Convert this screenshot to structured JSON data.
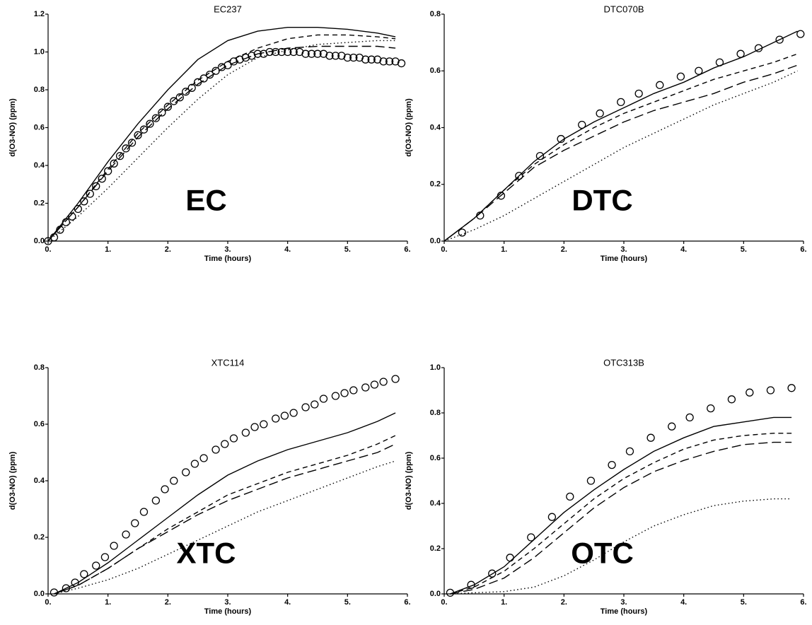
{
  "chart_data": [
    {
      "type": "line",
      "title": "EC237",
      "annotation": "EC",
      "x_label": "Time (hours)",
      "y_label": "d(O3-NO) (ppm)",
      "xlim": [
        0,
        6
      ],
      "ylim": [
        0,
        1.2
      ],
      "xticks": [
        {
          "value": 0,
          "label": "0."
        },
        {
          "value": 1,
          "label": "1."
        },
        {
          "value": 2,
          "label": "2."
        },
        {
          "value": 3,
          "label": "3."
        },
        {
          "value": 4,
          "label": "4."
        },
        {
          "value": 5,
          "label": "5."
        },
        {
          "value": 6,
          "label": "6."
        }
      ],
      "yticks": [
        {
          "value": 0,
          "label": "0.0"
        },
        0.2,
        0.4,
        0.6,
        0.8,
        {
          "value": 1,
          "label": "1.0"
        },
        1.2
      ],
      "series": [
        {
          "marker": "circle",
          "color": "#000000",
          "x": [
            0,
            0.1,
            0.2,
            0.3,
            0.4,
            0.5,
            0.6,
            0.7,
            0.8,
            0.9,
            1,
            1.1,
            1.2,
            1.3,
            1.4,
            1.5,
            1.6,
            1.7,
            1.8,
            1.9,
            2,
            2.1,
            2.2,
            2.3,
            2.4,
            2.5,
            2.6,
            2.7,
            2.8,
            2.9,
            3,
            3.1,
            3.2,
            3.3,
            3.4,
            3.5,
            3.6,
            3.7,
            3.8,
            3.9,
            4,
            4.1,
            4.2,
            4.3,
            4.4,
            4.5,
            4.6,
            4.7,
            4.8,
            4.9,
            5,
            5.1,
            5.2,
            5.3,
            5.4,
            5.5,
            5.6,
            5.7,
            5.8,
            5.9
          ],
          "values": [
            0,
            0.02,
            0.06,
            0.1,
            0.13,
            0.17,
            0.21,
            0.25,
            0.29,
            0.33,
            0.37,
            0.41,
            0.45,
            0.49,
            0.52,
            0.56,
            0.59,
            0.62,
            0.65,
            0.68,
            0.71,
            0.74,
            0.76,
            0.79,
            0.81,
            0.84,
            0.86,
            0.88,
            0.9,
            0.92,
            0.93,
            0.95,
            0.96,
            0.97,
            0.98,
            0.99,
            0.99,
            1,
            1,
            1,
            1,
            1,
            1,
            0.99,
            0.99,
            0.99,
            0.99,
            0.98,
            0.98,
            0.98,
            0.97,
            0.97,
            0.97,
            0.96,
            0.96,
            0.96,
            0.95,
            0.95,
            0.95,
            0.94
          ]
        },
        {
          "line": "solid",
          "color": "#000000",
          "x": [
            0,
            0.5,
            1,
            1.5,
            2,
            2.5,
            3,
            3.5,
            4,
            4.5,
            5,
            5.5,
            5.8
          ],
          "values": [
            0,
            0.2,
            0.42,
            0.62,
            0.8,
            0.96,
            1.06,
            1.11,
            1.13,
            1.13,
            1.12,
            1.1,
            1.08
          ]
        },
        {
          "line": "dashed",
          "color": "#000000",
          "x": [
            0,
            0.5,
            1,
            1.5,
            2,
            2.5,
            3,
            3.5,
            4,
            4.5,
            5,
            5.5,
            5.8
          ],
          "values": [
            0,
            0.18,
            0.38,
            0.57,
            0.72,
            0.85,
            0.95,
            1.02,
            1.07,
            1.09,
            1.09,
            1.08,
            1.07
          ]
        },
        {
          "line": "longdash",
          "color": "#000000",
          "x": [
            0,
            0.5,
            1,
            1.5,
            2,
            2.5,
            3,
            3.5,
            4,
            4.5,
            5,
            5.5,
            5.8
          ],
          "values": [
            0,
            0.18,
            0.37,
            0.55,
            0.7,
            0.83,
            0.93,
            0.99,
            1.02,
            1.03,
            1.03,
            1.03,
            1.02
          ]
        },
        {
          "line": "dotted",
          "color": "#000000",
          "x": [
            0,
            0.5,
            1,
            1.5,
            2,
            2.5,
            3,
            3.5,
            4,
            4.5,
            5,
            5.5,
            5.8
          ],
          "values": [
            0,
            0.13,
            0.28,
            0.44,
            0.6,
            0.75,
            0.88,
            0.97,
            1.01,
            1.04,
            1.05,
            1.06,
            1.06
          ]
        }
      ]
    },
    {
      "type": "line",
      "title": "DTC070B",
      "annotation": "DTC",
      "x_label": "Time (hours)",
      "y_label": "d(O3-NO) (ppm)",
      "xlim": [
        0,
        6
      ],
      "ylim": [
        0,
        0.8
      ],
      "xticks": [
        {
          "value": 0,
          "label": "0."
        },
        {
          "value": 1,
          "label": "1."
        },
        {
          "value": 2,
          "label": "2."
        },
        {
          "value": 3,
          "label": "3."
        },
        {
          "value": 4,
          "label": "4."
        },
        {
          "value": 5,
          "label": "5."
        },
        {
          "value": 6,
          "label": "6."
        }
      ],
      "yticks": [
        {
          "value": 0,
          "label": "0.0"
        },
        0.2,
        0.4,
        0.6,
        0.8
      ],
      "series": [
        {
          "marker": "circle",
          "color": "#000000",
          "x": [
            0.3,
            0.6,
            0.95,
            1.25,
            1.6,
            1.95,
            2.3,
            2.6,
            2.95,
            3.25,
            3.6,
            3.95,
            4.25,
            4.6,
            4.95,
            5.25,
            5.6,
            5.95
          ],
          "values": [
            0.03,
            0.09,
            0.16,
            0.23,
            0.3,
            0.36,
            0.41,
            0.45,
            0.49,
            0.52,
            0.55,
            0.58,
            0.6,
            0.63,
            0.66,
            0.68,
            0.71,
            0.73
          ]
        },
        {
          "line": "solid",
          "color": "#000000",
          "x": [
            0,
            0.5,
            1,
            1.5,
            2,
            2.5,
            3,
            3.5,
            4,
            4.5,
            5,
            5.5,
            5.9
          ],
          "values": [
            0,
            0.08,
            0.18,
            0.28,
            0.36,
            0.42,
            0.47,
            0.52,
            0.56,
            0.61,
            0.65,
            0.7,
            0.74
          ]
        },
        {
          "line": "dashed",
          "color": "#000000",
          "x": [
            0,
            0.5,
            1,
            1.5,
            2,
            2.5,
            3,
            3.5,
            4,
            4.5,
            5,
            5.5,
            5.9
          ],
          "values": [
            0,
            0.08,
            0.18,
            0.27,
            0.34,
            0.4,
            0.45,
            0.49,
            0.53,
            0.57,
            0.6,
            0.63,
            0.66
          ]
        },
        {
          "line": "longdash",
          "color": "#000000",
          "x": [
            0,
            0.5,
            1,
            1.5,
            2,
            2.5,
            3,
            3.5,
            4,
            4.5,
            5,
            5.5,
            5.9
          ],
          "values": [
            0,
            0.08,
            0.17,
            0.26,
            0.32,
            0.37,
            0.42,
            0.46,
            0.49,
            0.52,
            0.56,
            0.59,
            0.62
          ]
        },
        {
          "line": "dotted",
          "color": "#000000",
          "x": [
            0,
            0.5,
            1,
            1.5,
            2,
            2.5,
            3,
            3.5,
            4,
            4.5,
            5,
            5.5,
            5.9
          ],
          "values": [
            0,
            0.04,
            0.09,
            0.15,
            0.21,
            0.27,
            0.33,
            0.38,
            0.43,
            0.48,
            0.52,
            0.56,
            0.6
          ]
        }
      ]
    },
    {
      "type": "line",
      "title": "XTC114",
      "annotation": "XTC",
      "x_label": "Time (hours)",
      "y_label": "d(O3-NO) (ppm)",
      "xlim": [
        0,
        6
      ],
      "ylim": [
        0,
        0.8
      ],
      "xticks": [
        {
          "value": 0,
          "label": "0."
        },
        {
          "value": 1,
          "label": "1."
        },
        {
          "value": 2,
          "label": "2."
        },
        {
          "value": 3,
          "label": "3."
        },
        {
          "value": 4,
          "label": "4."
        },
        {
          "value": 5,
          "label": "5."
        },
        {
          "value": 6,
          "label": "6."
        }
      ],
      "yticks": [
        {
          "value": 0,
          "label": "0.0"
        },
        0.2,
        0.4,
        0.6,
        0.8
      ],
      "series": [
        {
          "marker": "circle",
          "color": "#000000",
          "x": [
            0.1,
            0.3,
            0.45,
            0.6,
            0.8,
            0.95,
            1.1,
            1.3,
            1.45,
            1.6,
            1.8,
            1.95,
            2.1,
            2.3,
            2.45,
            2.6,
            2.8,
            2.95,
            3.1,
            3.3,
            3.45,
            3.6,
            3.8,
            3.95,
            4.1,
            4.3,
            4.45,
            4.6,
            4.8,
            4.95,
            5.1,
            5.3,
            5.45,
            5.6,
            5.8
          ],
          "values": [
            0.005,
            0.02,
            0.04,
            0.07,
            0.1,
            0.13,
            0.17,
            0.21,
            0.25,
            0.29,
            0.33,
            0.37,
            0.4,
            0.43,
            0.46,
            0.48,
            0.51,
            0.53,
            0.55,
            0.57,
            0.59,
            0.6,
            0.62,
            0.63,
            0.64,
            0.66,
            0.67,
            0.69,
            0.7,
            0.71,
            0.72,
            0.73,
            0.74,
            0.75,
            0.76
          ]
        },
        {
          "line": "solid",
          "color": "#000000",
          "x": [
            0.1,
            0.5,
            1,
            1.5,
            2,
            2.5,
            3,
            3.5,
            4,
            4.5,
            5,
            5.5,
            5.8
          ],
          "values": [
            0,
            0.04,
            0.11,
            0.19,
            0.27,
            0.35,
            0.42,
            0.47,
            0.51,
            0.54,
            0.57,
            0.61,
            0.64
          ]
        },
        {
          "line": "dashed",
          "color": "#000000",
          "x": [
            0.1,
            0.5,
            1,
            1.5,
            2,
            2.5,
            3,
            3.5,
            4,
            4.5,
            5,
            5.5,
            5.8
          ],
          "values": [
            0,
            0.03,
            0.09,
            0.16,
            0.23,
            0.29,
            0.35,
            0.39,
            0.43,
            0.46,
            0.49,
            0.53,
            0.56
          ]
        },
        {
          "line": "longdash",
          "color": "#000000",
          "x": [
            0.1,
            0.5,
            1,
            1.5,
            2,
            2.5,
            3,
            3.5,
            4,
            4.5,
            5,
            5.5,
            5.8
          ],
          "values": [
            0,
            0.03,
            0.09,
            0.16,
            0.22,
            0.28,
            0.33,
            0.37,
            0.41,
            0.44,
            0.47,
            0.5,
            0.53
          ]
        },
        {
          "line": "dotted",
          "color": "#000000",
          "x": [
            0.1,
            0.5,
            1,
            1.5,
            2,
            2.5,
            3,
            3.5,
            4,
            4.5,
            5,
            5.5,
            5.8
          ],
          "values": [
            0,
            0.02,
            0.05,
            0.09,
            0.14,
            0.19,
            0.24,
            0.29,
            0.33,
            0.37,
            0.41,
            0.45,
            0.47
          ]
        }
      ]
    },
    {
      "type": "line",
      "title": "OTC313B",
      "annotation": "OTC",
      "x_label": "Time (hours)",
      "y_label": "d(O3-NO) (ppm)",
      "xlim": [
        0,
        6
      ],
      "ylim": [
        0,
        1
      ],
      "xticks": [
        {
          "value": 0,
          "label": "0."
        },
        {
          "value": 1,
          "label": "1."
        },
        {
          "value": 2,
          "label": "2."
        },
        {
          "value": 3,
          "label": "3."
        },
        {
          "value": 4,
          "label": "4."
        },
        {
          "value": 5,
          "label": "5."
        },
        {
          "value": 6,
          "label": "6."
        }
      ],
      "yticks": [
        {
          "value": 0,
          "label": "0.0"
        },
        0.2,
        0.4,
        0.6,
        0.8,
        {
          "value": 1,
          "label": "1.0"
        }
      ],
      "series": [
        {
          "marker": "circle",
          "color": "#000000",
          "x": [
            0.1,
            0.45,
            0.8,
            1.1,
            1.45,
            1.8,
            2.1,
            2.45,
            2.8,
            3.1,
            3.45,
            3.8,
            4.1,
            4.45,
            4.8,
            5.1,
            5.45,
            5.8
          ],
          "values": [
            0.005,
            0.04,
            0.09,
            0.16,
            0.25,
            0.34,
            0.43,
            0.5,
            0.57,
            0.63,
            0.69,
            0.74,
            0.78,
            0.82,
            0.86,
            0.89,
            0.9,
            0.91
          ]
        },
        {
          "line": "solid",
          "color": "#000000",
          "x": [
            0.1,
            0.5,
            1,
            1.5,
            2,
            2.5,
            3,
            3.5,
            4,
            4.5,
            5,
            5.5,
            5.8
          ],
          "values": [
            0,
            0.04,
            0.12,
            0.24,
            0.36,
            0.46,
            0.55,
            0.63,
            0.69,
            0.74,
            0.76,
            0.78,
            0.78
          ]
        },
        {
          "line": "dashed",
          "color": "#000000",
          "x": [
            0.1,
            0.5,
            1,
            1.5,
            2,
            2.5,
            3,
            3.5,
            4,
            4.5,
            5,
            5.5,
            5.8
          ],
          "values": [
            0,
            0.03,
            0.1,
            0.2,
            0.31,
            0.42,
            0.51,
            0.58,
            0.64,
            0.68,
            0.7,
            0.71,
            0.71
          ]
        },
        {
          "line": "longdash",
          "color": "#000000",
          "x": [
            0.1,
            0.5,
            1,
            1.5,
            2,
            2.5,
            3,
            3.5,
            4,
            4.5,
            5,
            5.5,
            5.8
          ],
          "values": [
            0,
            0.02,
            0.07,
            0.16,
            0.27,
            0.38,
            0.47,
            0.54,
            0.59,
            0.63,
            0.66,
            0.67,
            0.67
          ]
        },
        {
          "line": "dotted",
          "color": "#000000",
          "x": [
            0.1,
            0.5,
            1,
            1.5,
            2,
            2.5,
            3,
            3.5,
            4,
            4.5,
            5,
            5.5,
            5.8
          ],
          "values": [
            0,
            0.005,
            0.01,
            0.03,
            0.08,
            0.15,
            0.23,
            0.3,
            0.35,
            0.39,
            0.41,
            0.42,
            0.42
          ]
        }
      ]
    }
  ]
}
